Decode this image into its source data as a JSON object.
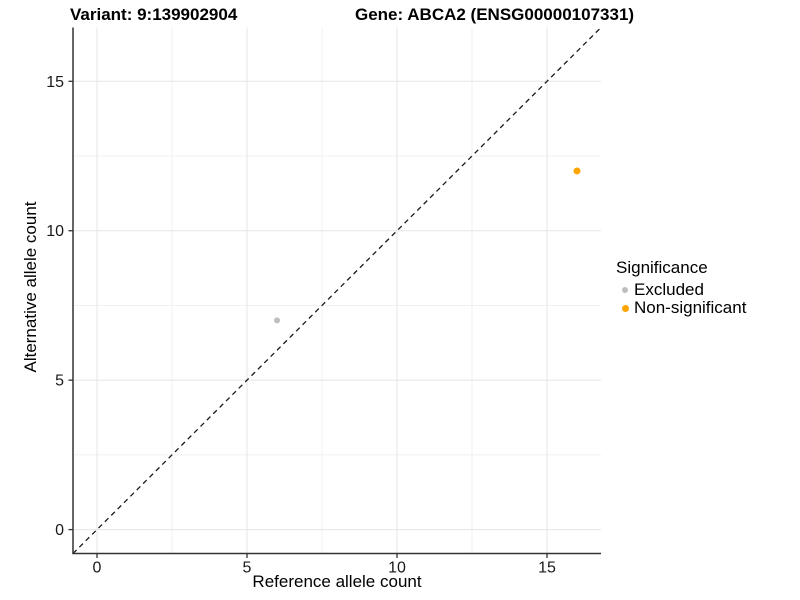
{
  "title": {
    "left": "Variant: 9:139902904",
    "right": "Gene: ABCA2 (ENSG00000107331)"
  },
  "axes": {
    "x_label": "Reference allele count",
    "y_label": "Alternative allele count"
  },
  "legend": {
    "title": "Significance",
    "position": "right",
    "items": [
      {
        "label": "Excluded",
        "color": "#BEBEBE",
        "dot_size": 6
      },
      {
        "label": "Non-significant",
        "color": "#FFA500",
        "dot_size": 7
      }
    ]
  },
  "chart_data": {
    "type": "scatter",
    "title": "Variant: 9:139902904   Gene: ABCA2 (ENSG00000107331)",
    "xlabel": "Reference allele count",
    "ylabel": "Alternative allele count",
    "xlim": [
      -0.8,
      16.8
    ],
    "ylim": [
      -0.8,
      16.8
    ],
    "x_ticks": [
      0,
      5,
      10,
      15
    ],
    "y_ticks": [
      0,
      5,
      10,
      15
    ],
    "x_minor_ticks": [
      2.5,
      7.5,
      12.5
    ],
    "y_minor_ticks": [
      2.5,
      7.5,
      12.5
    ],
    "grid": true,
    "legend_position": "right",
    "series": [
      {
        "name": "Excluded",
        "color": "#BEBEBE",
        "point_radius": 3,
        "points": [
          {
            "x": 6,
            "y": 7
          }
        ]
      },
      {
        "name": "Non-significant",
        "color": "#FFA500",
        "point_radius": 3.5,
        "points": [
          {
            "x": 16,
            "y": 12
          }
        ]
      }
    ],
    "reference_line": {
      "type": "identity",
      "style": "dashed",
      "color": "#1a1a1a"
    }
  },
  "colors": {
    "major_grid": "#E5E5E5",
    "minor_grid": "#F1F1F1",
    "axis_line": "#333333",
    "tick_label": "#1a1a1a",
    "background": "#FFFFFF"
  }
}
